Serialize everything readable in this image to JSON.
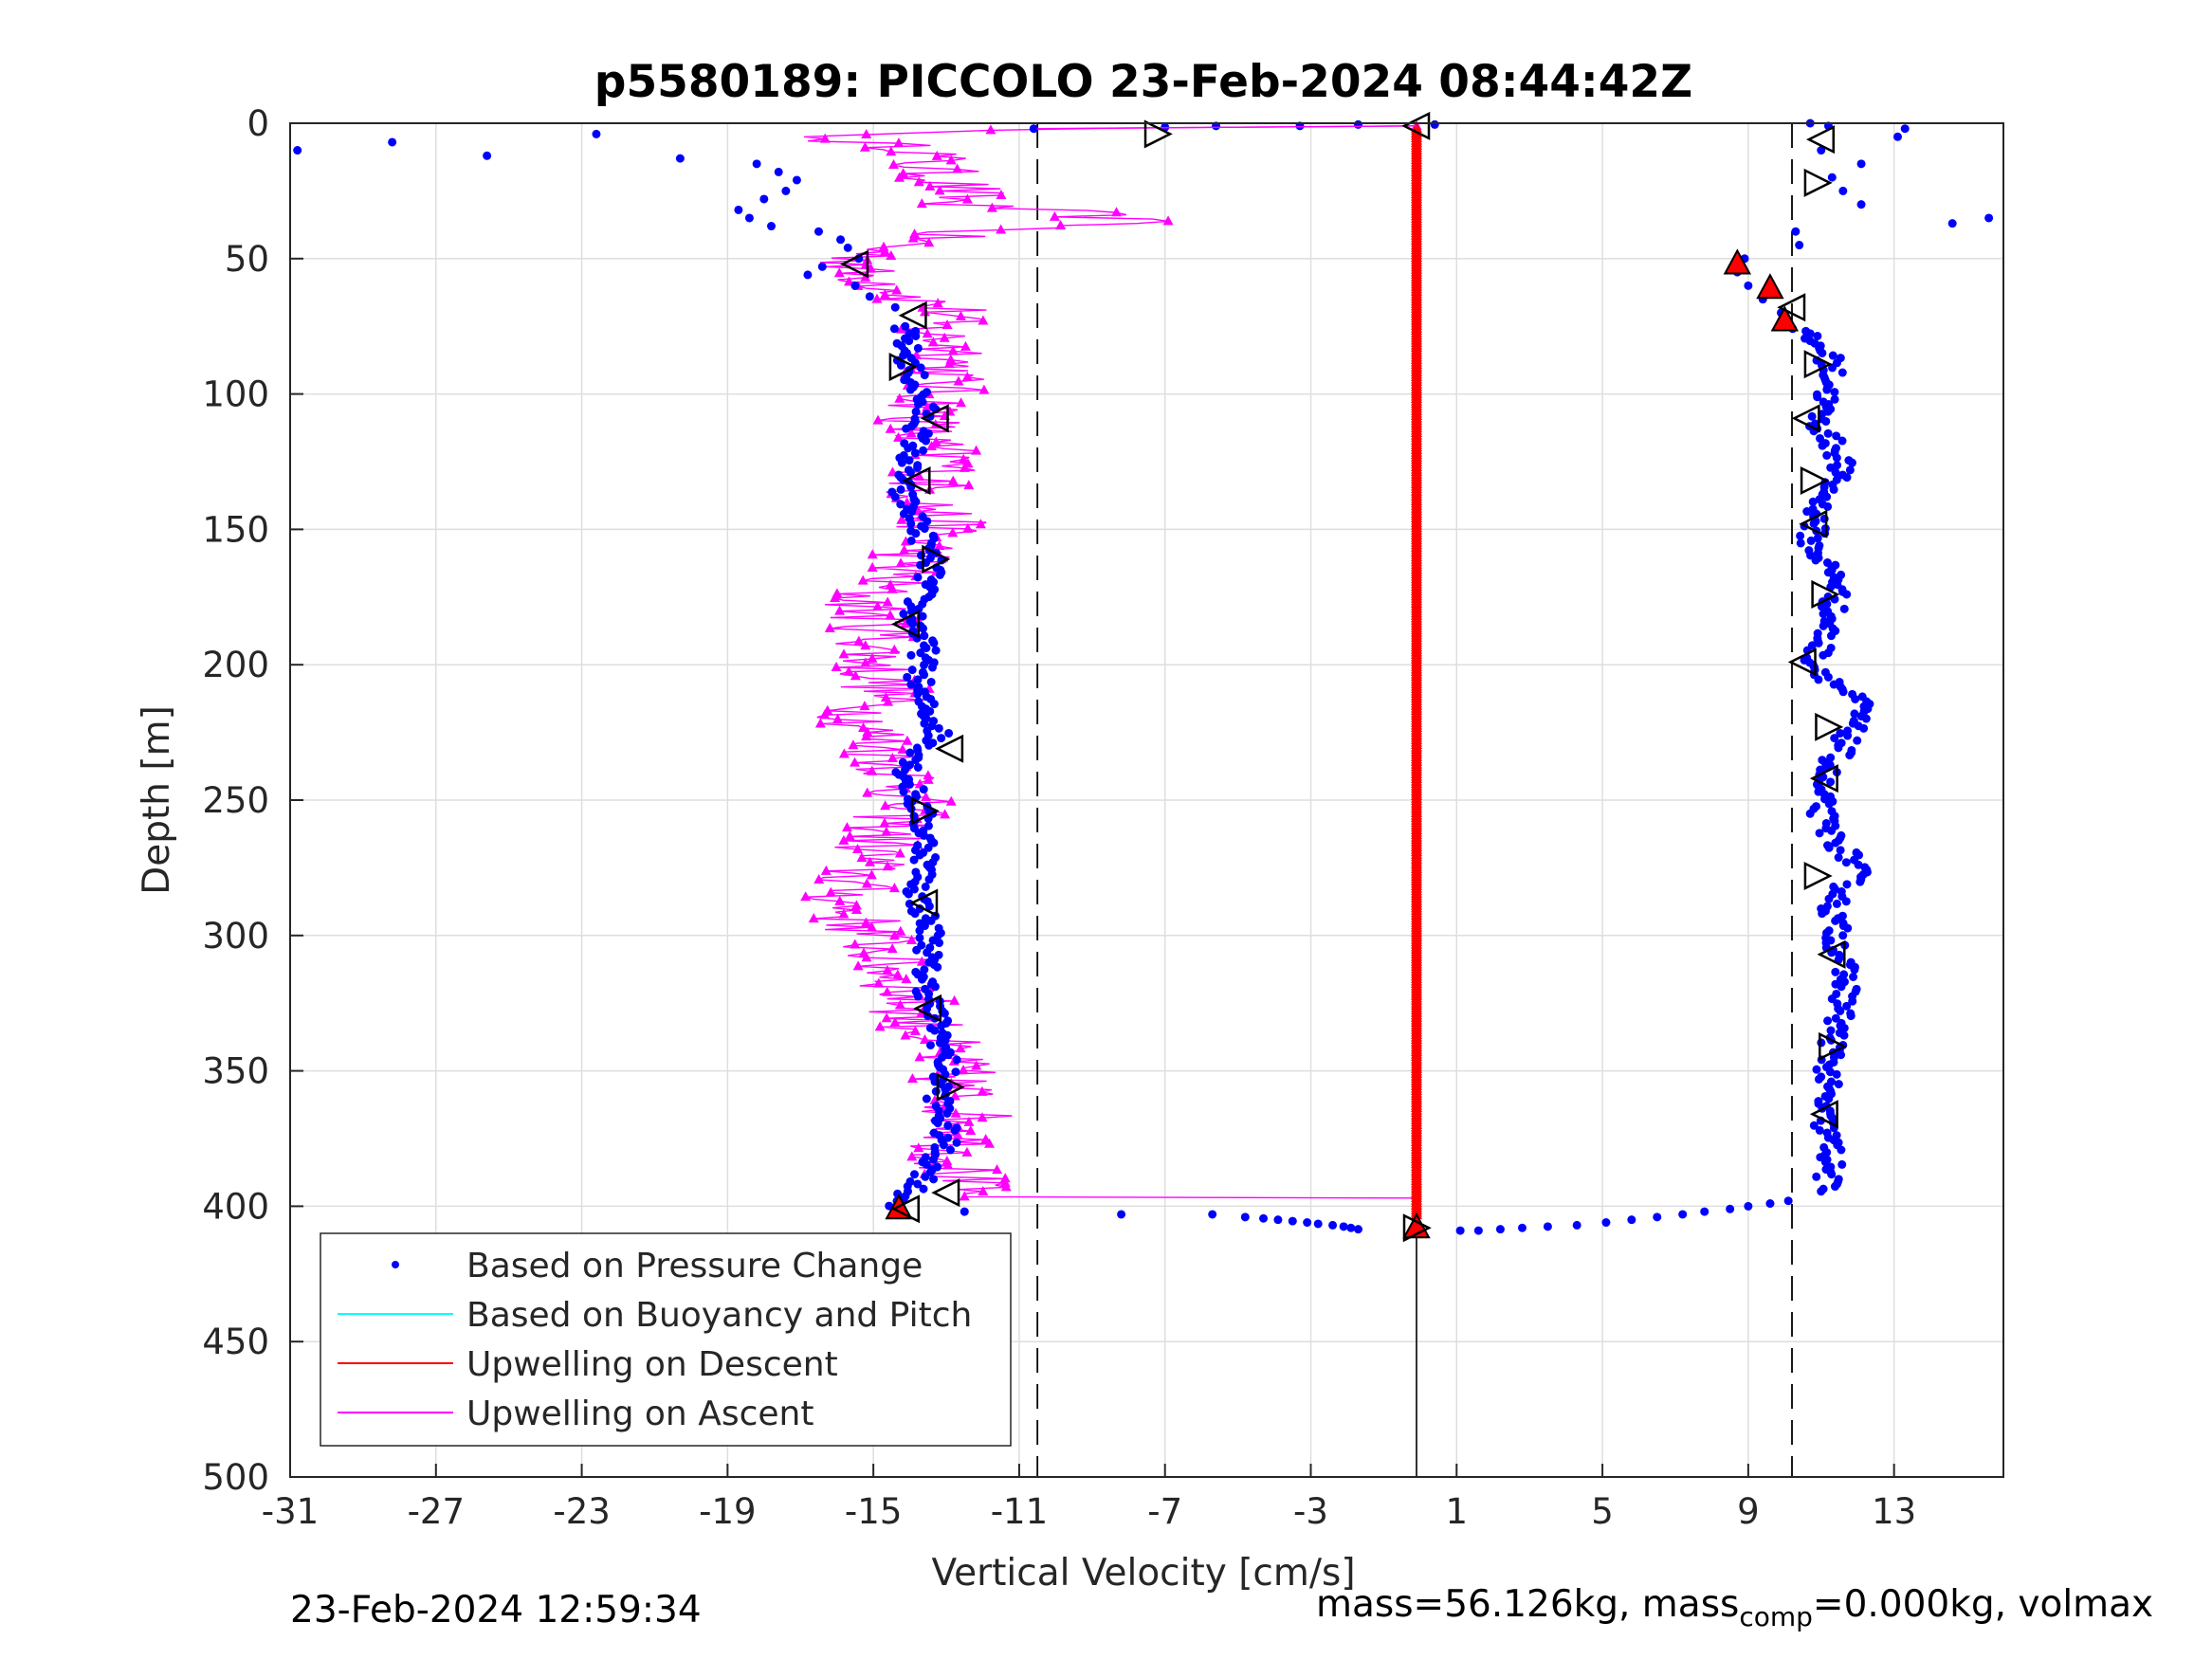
{
  "chart_data": {
    "type": "scatter",
    "title": "p5580189: PICCOLO 23-Feb-2024 08:44:42Z",
    "xlabel": "Vertical Velocity [cm/s]",
    "ylabel": "Depth [m]",
    "xlim": [
      -31,
      16
    ],
    "ylim": [
      0,
      500
    ],
    "y_reversed": true,
    "grid": true,
    "xticks": [
      -31,
      -27,
      -23,
      -19,
      -15,
      -11,
      -7,
      -3,
      1,
      5,
      9,
      13
    ],
    "yticks": [
      0,
      50,
      100,
      150,
      200,
      250,
      300,
      350,
      400,
      450,
      500
    ],
    "legend": {
      "position": "bottom-left",
      "entries": [
        {
          "label": "Based on Pressure Change",
          "color": "#0000ff",
          "marker": "dot"
        },
        {
          "label": "Based on Buoyancy and Pitch",
          "color": "#00ffff",
          "marker": "line"
        },
        {
          "label": "Upwelling on Descent",
          "color": "#ff0000",
          "marker": "line"
        },
        {
          "label": "Upwelling on Ascent",
          "color": "#ff00ff",
          "marker": "line"
        }
      ]
    },
    "reference_lines": {
      "dashed_x": [
        -10.5,
        10.2
      ],
      "solid_x": -0.1,
      "solid_x_depth_range": [
        397,
        500
      ]
    },
    "series": [
      {
        "name": "Based on Pressure Change",
        "color": "#0000ff",
        "profiles": [
          {
            "part": "dive-surface",
            "depth": [
              10,
              7,
              12,
              4,
              13,
              15,
              18,
              21,
              25,
              28,
              32,
              35,
              38,
              40,
              43,
              46,
              50,
              53,
              56,
              60,
              64,
              68
            ],
            "velocity": [
              -30.8,
              -28.2,
              -25.6,
              -22.6,
              -20.3,
              -18.2,
              -17.6,
              -17.1,
              -17.4,
              -18.0,
              -18.7,
              -18.4,
              -17.8,
              -16.5,
              -15.9,
              -15.7,
              -15.4,
              -16.4,
              -16.8,
              -15.5,
              -15.1,
              -14.4
            ]
          },
          {
            "part": "dive-interior",
            "depth": [
              75,
              90,
              105,
              120,
              135,
              150,
              165,
              180,
              195,
              210,
              225,
              240,
              255,
              270,
              285,
              300,
              315,
              330,
              345,
              360,
              375,
              390,
              400
            ],
            "velocity": [
              -14.2,
              -14.0,
              -13.6,
              -13.9,
              -14.3,
              -13.7,
              -13.4,
              -13.9,
              -13.6,
              -13.8,
              -13.2,
              -14.1,
              -13.7,
              -13.5,
              -13.8,
              -13.4,
              -13.6,
              -13.3,
              -13.0,
              -13.2,
              -13.0,
              -13.6,
              -14.4
            ]
          },
          {
            "part": "bottom",
            "depth": [
              402,
              403,
              403,
              404,
              404.5,
              405,
              405.5,
              406,
              406.5,
              407,
              407.5,
              408,
              408.5,
              409,
              409,
              408.5,
              408,
              407.5,
              407,
              406,
              405,
              404,
              403,
              402,
              401,
              400,
              399,
              398
            ],
            "velocity": [
              -12.5,
              -8.2,
              -5.7,
              -4.8,
              -4.3,
              -3.9,
              -3.5,
              -3.1,
              -2.8,
              -2.4,
              -2.1,
              -1.9,
              -1.7,
              1.1,
              1.6,
              2.2,
              2.8,
              3.5,
              4.3,
              5.1,
              5.8,
              6.5,
              7.2,
              7.8,
              8.5,
              9.0,
              9.6,
              10.1
            ]
          },
          {
            "part": "climb-interior",
            "depth": [
              395,
              380,
              365,
              350,
              335,
              320,
              305,
              290,
              275,
              260,
              245,
              230,
              215,
              200,
              185,
              170,
              155,
              140,
              125,
              110,
              95,
              85,
              75
            ],
            "velocity": [
              11.1,
              11.3,
              11.0,
              11.2,
              11.4,
              11.7,
              11.5,
              11.3,
              12.0,
              11.1,
              10.9,
              11.6,
              12.1,
              10.8,
              11.2,
              11.5,
              10.7,
              11.0,
              11.6,
              10.9,
              11.3,
              11.2,
              10.2
            ]
          },
          {
            "part": "climb-surface",
            "depth": [
              70,
              65,
              60,
              55,
              50,
              45,
              40,
              37,
              35,
              30,
              25,
              20,
              15,
              10,
              5,
              2,
              1,
              0
            ],
            "velocity": [
              9.9,
              9.4,
              9.0,
              8.7,
              8.9,
              10.4,
              10.3,
              14.6,
              15.6,
              12.1,
              11.6,
              11.3,
              12.1,
              11.0,
              13.1,
              13.3,
              11.2,
              10.7
            ]
          },
          {
            "part": "surface-transit",
            "depth": [
              2,
              1.5,
              1,
              1,
              0.5,
              0.5
            ],
            "velocity": [
              -10.6,
              -7.0,
              -5.6,
              -3.3,
              -1.7,
              0.4
            ]
          }
        ]
      },
      {
        "name": "Based on Buoyancy and Pitch",
        "color": "#000000",
        "markers": {
          "dive": {
            "depth": [
              1,
              4,
              52,
              71,
              90,
              109,
              132,
              161,
              185,
              231,
              254,
              288,
              327,
              356,
              395,
              401
            ],
            "velocity": [
              -0.1,
              -7.2,
              -15.5,
              -13.9,
              -14.2,
              -13.3,
              -13.8,
              -13.3,
              -14.1,
              -12.9,
              -13.6,
              -13.6,
              -13.5,
              -12.9,
              -13.0,
              -14.1
            ]
          },
          "climb": {
            "depth": [
              408,
              366,
              341,
              307,
              278,
              242,
              223,
              199,
              174,
              148,
              132,
              109,
              89,
              68,
              22,
              6
            ],
            "velocity": [
              -0.1,
              11.1,
              11.3,
              11.3,
              10.9,
              11.1,
              11.2,
              10.5,
              11.1,
              10.8,
              10.8,
              10.6,
              10.9,
              10.2,
              10.9,
              11.0
            ]
          }
        }
      },
      {
        "name": "Upwelling on Descent",
        "color": "#ff0000",
        "velocity": -0.1,
        "depth_range": [
          2,
          404
        ],
        "markers": {
          "depth": [
            401,
            408,
            52,
            61,
            73
          ],
          "velocity": [
            -14.3,
            -0.1,
            8.7,
            9.6,
            10.0
          ]
        }
      },
      {
        "name": "Upwelling on Ascent",
        "color": "#ff00ff",
        "profile": {
          "depth": [
            1,
            2,
            5,
            10,
            15,
            20,
            25,
            30,
            33,
            35,
            37,
            40,
            43,
            46,
            50,
            55,
            60,
            65,
            70,
            75,
            85,
            95,
            105,
            115,
            125,
            135,
            150,
            165,
            175,
            180,
            190,
            200,
            210,
            220,
            230,
            245,
            260,
            270,
            280,
            290,
            300,
            310,
            320,
            330,
            340,
            350,
            360,
            370,
            380,
            390,
            396,
            396.5,
            397,
            398,
            399,
            400,
            402
          ],
          "velocity": [
            -0.1,
            -10.5,
            -16.9,
            -13.3,
            -13.7,
            -13.1,
            -12.5,
            -12.9,
            -9.5,
            -8.7,
            -7.4,
            -12.8,
            -13.5,
            -14.8,
            -15.2,
            -15.6,
            -14.4,
            -13.8,
            -12.7,
            -13.6,
            -12.6,
            -13.1,
            -13.4,
            -13.9,
            -12.9,
            -13.6,
            -13.1,
            -14.2,
            -15.3,
            -15.1,
            -14.8,
            -15.0,
            -14.6,
            -15.3,
            -14.8,
            -13.9,
            -14.5,
            -15.1,
            -15.6,
            -15.8,
            -15.0,
            -14.6,
            -14.1,
            -13.8,
            -13.3,
            -12.9,
            -12.6,
            -12.3,
            -12.8,
            -12.6,
            -12.5,
            -12.5,
            -0.1,
            -0.1,
            -0.1,
            -0.1,
            -0.1
          ]
        }
      }
    ],
    "annotations": {
      "timestamp": "23-Feb-2024 12:59:34",
      "mass_main": "mass=56.126kg, mass",
      "mass_sub": "comp",
      "mass_tail": "=0.000kg, volmax"
    }
  }
}
